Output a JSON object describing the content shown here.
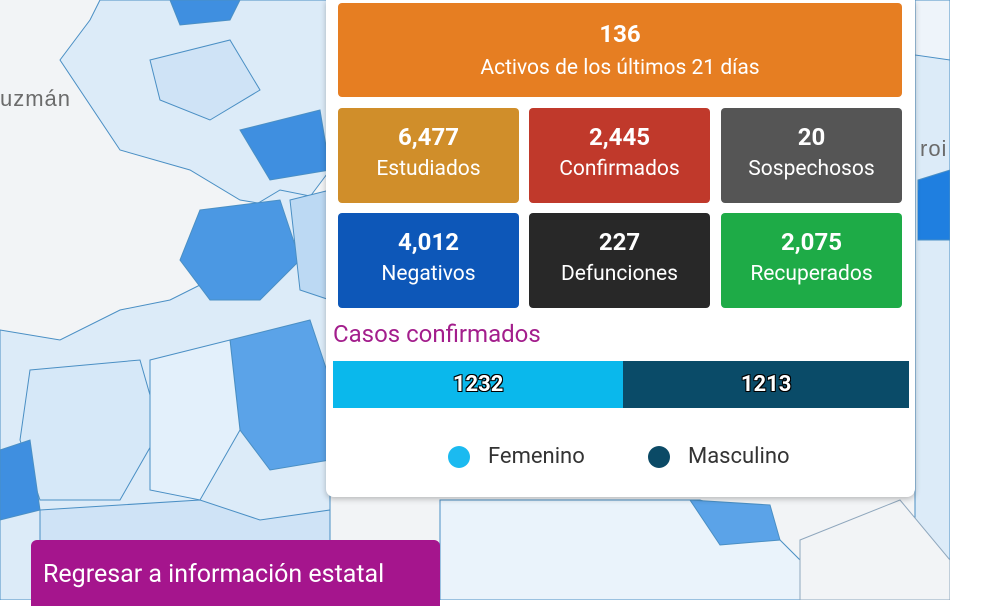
{
  "map": {
    "labels": {
      "left": "uzmán",
      "right": "roi"
    }
  },
  "summary": {
    "active": {
      "value": "136",
      "label": "Activos de los últimos 21 días",
      "color": "#e67e22"
    },
    "stats": [
      {
        "value": "6,477",
        "label": "Estudiados",
        "color": "#d08e2a"
      },
      {
        "value": "2,445",
        "label": "Confirmados",
        "color": "#c0392b"
      },
      {
        "value": "20",
        "label": "Sospechosos",
        "color": "#555555"
      },
      {
        "value": "4,012",
        "label": "Negativos",
        "color": "#0d57b8"
      },
      {
        "value": "227",
        "label": "Defunciones",
        "color": "#282828"
      },
      {
        "value": "2,075",
        "label": "Recuperados",
        "color": "#1eab47"
      }
    ]
  },
  "confirmed_cases": {
    "title": "Casos confirmados",
    "female": {
      "value": "1232",
      "label": "Femenino",
      "color": "#0ab8ec"
    },
    "male": {
      "value": "1213",
      "label": "Masculino",
      "color": "#0a4b68"
    }
  },
  "back_button": {
    "label": "Regresar a información estatal",
    "color": "#a5158d"
  },
  "icons": [
    "map-background",
    "marker-tab-icon"
  ]
}
